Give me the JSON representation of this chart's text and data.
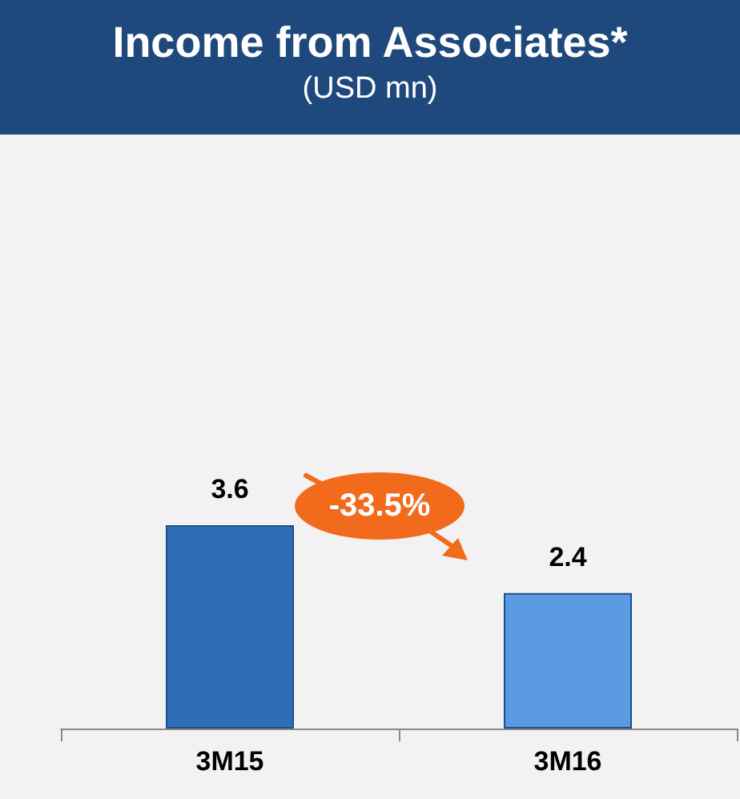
{
  "chart_data": {
    "type": "bar",
    "title": "Income from Associates*",
    "subtitle": "(USD mn)",
    "categories": [
      "3M15",
      "3M16"
    ],
    "values": [
      3.6,
      2.4
    ],
    "colors": [
      "#2f6db6",
      "#5a9be2"
    ],
    "data_labels": true,
    "annotations": [
      "-33.5%"
    ]
  }
}
